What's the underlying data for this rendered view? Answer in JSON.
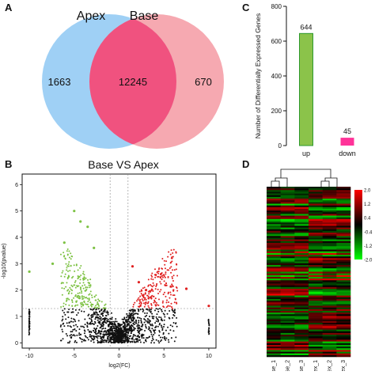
{
  "panel_labels": {
    "a": "A",
    "b": "B",
    "c": "C",
    "d": "D"
  },
  "chart_data": [
    {
      "type": "venn",
      "sets": [
        {
          "name": "Apex",
          "only": 1663,
          "color": "#8ec8f3"
        },
        {
          "name": "Base",
          "only": 670,
          "color": "#f49aa3"
        }
      ],
      "intersection": 12245,
      "intersection_color": "#f0527f"
    },
    {
      "type": "scatter",
      "title": "Base VS Apex",
      "xlabel": "log2(FC)",
      "ylabel": "-log10(pvalue)",
      "xticks": [
        -10,
        -5,
        0,
        5,
        10
      ],
      "yticks": [
        0,
        1,
        2,
        3,
        4,
        5,
        6
      ],
      "xlim": [
        -10.8,
        10.8
      ],
      "ylim": [
        -0.2,
        6.4
      ],
      "fc_thresholds": [
        -1,
        1
      ],
      "p_threshold": 1.3,
      "colors": {
        "down": "#7cc142",
        "up": "#e02020",
        "ns": "#111111"
      },
      "highlight_points": [
        {
          "x": -5.0,
          "y": 5.0,
          "group": "down"
        },
        {
          "x": -4.3,
          "y": 4.6,
          "group": "down"
        },
        {
          "x": -3.5,
          "y": 4.4,
          "group": "down"
        },
        {
          "x": -6.1,
          "y": 3.8,
          "group": "down"
        },
        {
          "x": -2.8,
          "y": 3.6,
          "group": "down"
        },
        {
          "x": -7.4,
          "y": 3.0,
          "group": "down"
        },
        {
          "x": -10.0,
          "y": 2.7,
          "group": "down"
        },
        {
          "x": 1.5,
          "y": 2.9,
          "group": "up"
        },
        {
          "x": 2.2,
          "y": 2.3,
          "group": "up"
        },
        {
          "x": 3.0,
          "y": 2.0,
          "group": "up"
        },
        {
          "x": 7.5,
          "y": 2.05,
          "group": "up"
        },
        {
          "x": 10.0,
          "y": 1.4,
          "group": "up"
        }
      ]
    },
    {
      "type": "bar",
      "categories": [
        "up",
        "down"
      ],
      "values": [
        644,
        45
      ],
      "ylabel": "Number of Differentially Expressed Genes",
      "ylim": [
        0,
        800
      ],
      "yticks": [
        0,
        200,
        400,
        600,
        800
      ],
      "colors": [
        "#8bc34a",
        "#ff3399"
      ]
    },
    {
      "type": "heatmap",
      "columns": [
        "Base_1",
        "Base_2",
        "Base_3",
        "Apex_1",
        "Apex_2",
        "Apex_3"
      ],
      "column_groups": [
        [
          "Base_1",
          "Base_2",
          "Base_3"
        ],
        [
          "Apex_1",
          "Apex_2",
          "Apex_3"
        ]
      ],
      "legend_ticks": [
        "2.0",
        "1.2",
        "0.4",
        "-0.4",
        "-1.2",
        "-2.0"
      ],
      "legend_range": [
        -2.0,
        2.0
      ],
      "colors": {
        "high": "#ff0000",
        "mid": "#000000",
        "low": "#00ff00"
      }
    }
  ]
}
